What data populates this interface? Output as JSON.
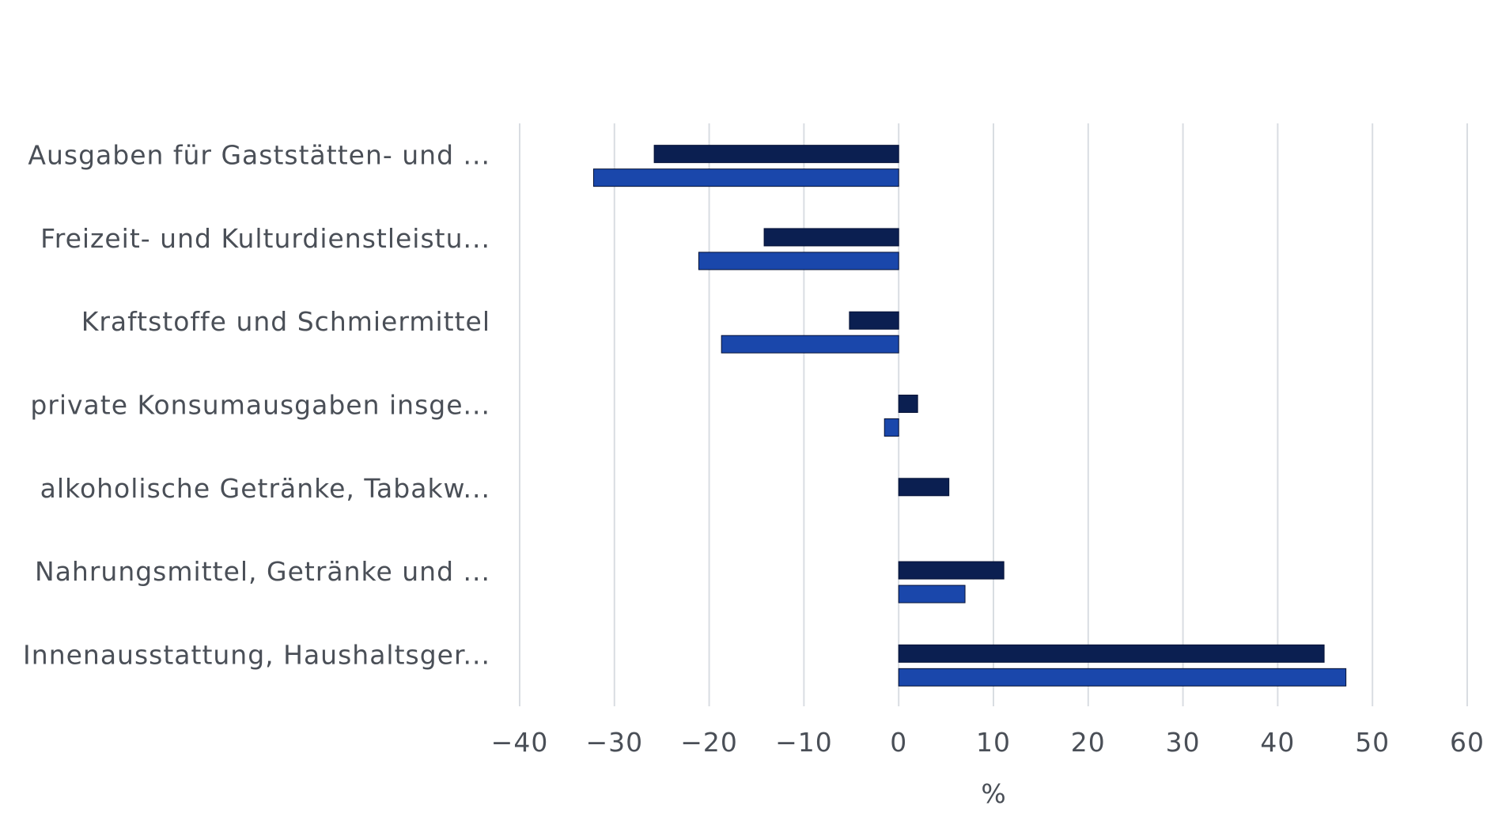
{
  "chart_data": {
    "type": "bar",
    "orientation": "horizontal",
    "categories": [
      "Ausgaben für Gaststätten- und ...",
      "Freizeit- und Kulturdienstleistu...",
      "Kraftstoffe und Schmiermittel",
      "private Konsumausgaben insge...",
      "alkoholische Getränke, Tabakw...",
      "Nahrungsmittel, Getränke und ...",
      "Innenausstattung, Haushaltsger..."
    ],
    "series": [
      {
        "color": "#0b1f51",
        "values": [
          -25.8,
          -14.2,
          -5.2,
          2.0,
          5.3,
          11.1,
          44.9
        ]
      },
      {
        "color": "#1a47ab",
        "values": [
          -32.2,
          -21.1,
          -18.7,
          -1.5,
          0,
          7.0,
          47.2
        ]
      }
    ],
    "xlabel": "%",
    "ylabel": "",
    "title": "",
    "xlim": [
      -40,
      60
    ],
    "xticks": [
      "-40",
      "-30",
      "-20",
      "-10",
      "0",
      "10",
      "20",
      "30",
      "40",
      "50",
      "60"
    ],
    "grid": true,
    "legend": "none"
  }
}
